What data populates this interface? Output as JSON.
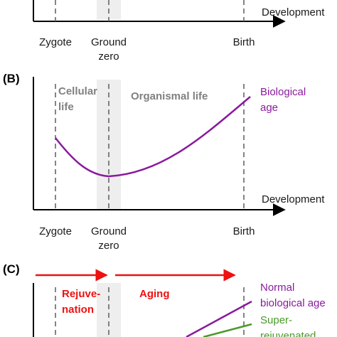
{
  "panels": {
    "a": {
      "x_axis_label": "Development",
      "markers": [
        "Zygote",
        "Ground",
        "zero",
        "Birth"
      ]
    },
    "b": {
      "panel_label": "(B)",
      "x_axis_label": "Development",
      "markers": [
        "Zygote",
        "Ground",
        "zero",
        "Birth"
      ],
      "region_left": [
        "Cellular",
        "life"
      ],
      "region_right": "Organismal life",
      "curve_label": [
        "Biological",
        "age"
      ]
    },
    "c": {
      "panel_label": "(C)",
      "arrow_left": [
        "Rejuve-",
        "nation"
      ],
      "arrow_right": "Aging",
      "series": [
        {
          "name": [
            "Normal",
            "biological age"
          ],
          "color": "#8a1a9e"
        },
        {
          "name": [
            "Super-",
            "rejuvenated"
          ],
          "color": "#4a9a2a"
        }
      ]
    }
  },
  "colors": {
    "axis": "#000000",
    "dashed": "#666666",
    "band": "#eeeeee",
    "purple": "#8a1a9e",
    "red": "#ee1111",
    "green": "#4a9a2a"
  }
}
